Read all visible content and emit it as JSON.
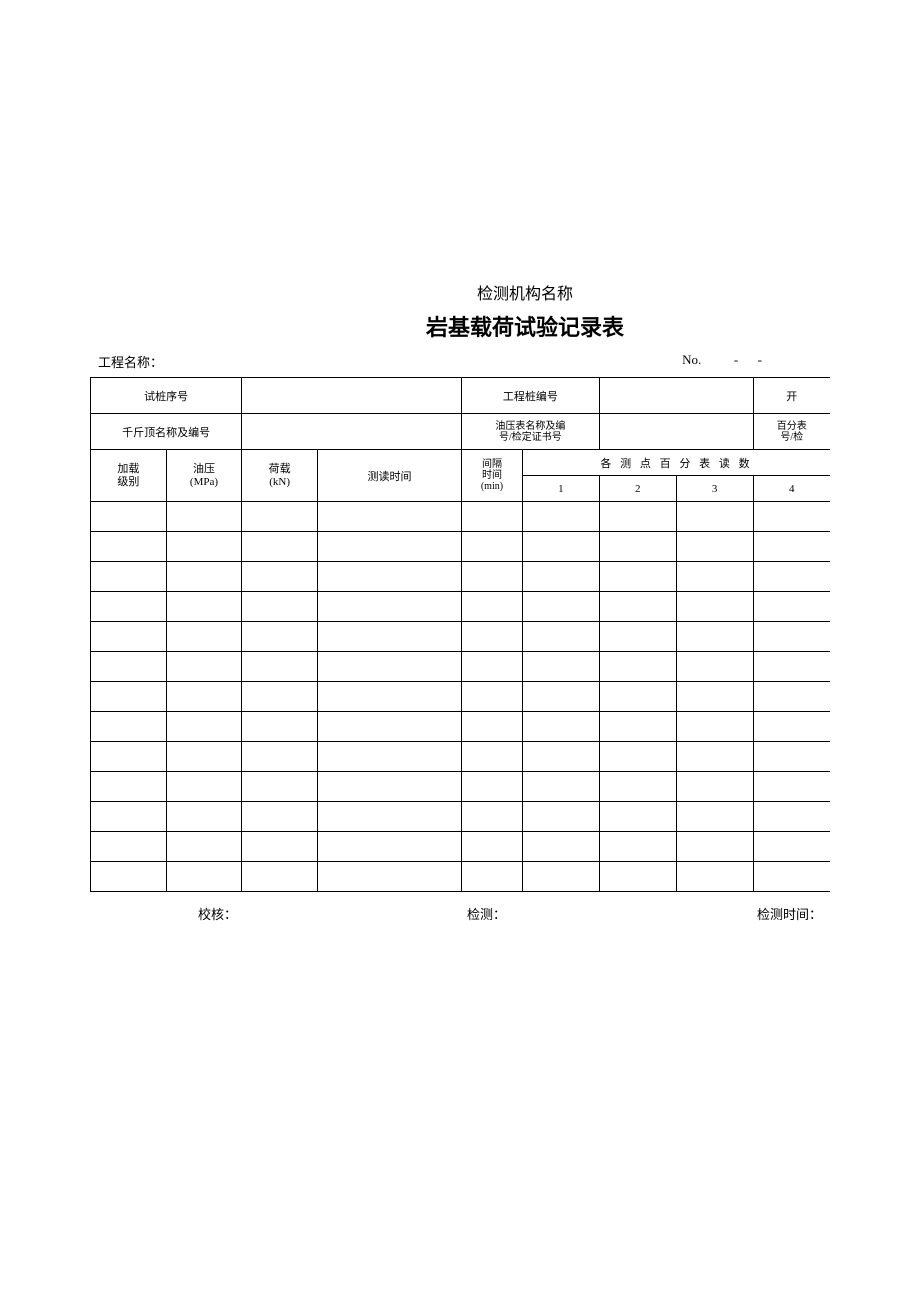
{
  "header": {
    "org": "检测机构名称",
    "title": "岩基载荷试验记录表"
  },
  "topRow": {
    "projectLabel": "工程名称：",
    "noLabel": "No.",
    "noDash": "-",
    "noDash2": "-"
  },
  "infoTable": {
    "row1": {
      "c1": "试桩序号",
      "c2": "",
      "c3": "工程桩编号",
      "c4": "",
      "c5": "开"
    },
    "row2": {
      "c1": "千斤顶名称及编号",
      "c2": "",
      "c3": "油压表名称及编号/检定证书号",
      "c4": "",
      "c5": "百分表号/检"
    }
  },
  "mainHeader": {
    "col1": "加载\n级别",
    "col2": "油压\n(MPa)",
    "col3": "荷载\n(kN)",
    "col4": "测读时间",
    "col5": "间隔\n时间\n(min)",
    "group": "各 测 点 百 分 表 读 数",
    "sub1": "1",
    "sub2": "2",
    "sub3": "3",
    "sub4": "4"
  },
  "dataRows": 13,
  "footer": {
    "f1": "校核：",
    "f2": "检测：",
    "f3": "检测时间："
  },
  "style": {
    "colWidths": {
      "info_c1": 120,
      "info_c2": 215,
      "info_c3": 155,
      "info_c4": 180,
      "info_c5": 36
    },
    "mainColWidths": {
      "c1": 62,
      "c2": 62,
      "c3": 62,
      "c4": 118,
      "c5": 50,
      "c6": 63,
      "c7": 63,
      "c8": 63,
      "c9": 63
    }
  }
}
